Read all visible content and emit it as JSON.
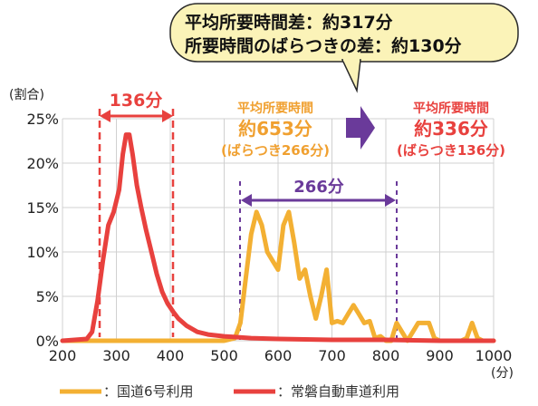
{
  "callout": {
    "line1": "平均所要時間差：約317分",
    "line2": "所要時間のばらつきの差：約130分"
  },
  "annotations": {
    "red_span_label": "136分",
    "purple_span_label": "266分",
    "orange_block": [
      "平均所要時間",
      "約653分",
      "(ばらつき266分)"
    ],
    "red_block": [
      "平均所要時間",
      "約336分",
      "(ばらつき136分)"
    ]
  },
  "colors": {
    "orange": "#f3b033",
    "red": "#e8413e",
    "purple": "#6a3a9a",
    "callout_fill": "#fbf3b8",
    "callout_stroke": "#2a2a2a"
  },
  "chart_data": {
    "type": "line",
    "xlabel": "(分)",
    "ylabel": "(割合)",
    "xlim": [
      200,
      1000
    ],
    "ylim": [
      0,
      25
    ],
    "x_ticks": [
      200,
      300,
      400,
      500,
      600,
      700,
      800,
      900,
      1000
    ],
    "y_ticks": [
      0,
      5,
      10,
      15,
      20,
      25
    ],
    "y_tick_labels": [
      "0%",
      "5%",
      "10%",
      "15%",
      "20%",
      "25%"
    ],
    "grid": true,
    "legend_position": "bottom",
    "series": [
      {
        "name": "：国道6号利用",
        "color": "#f3b033",
        "points": [
          [
            200,
            0
          ],
          [
            460,
            0
          ],
          [
            500,
            0
          ],
          [
            520,
            0.3
          ],
          [
            530,
            2
          ],
          [
            540,
            7
          ],
          [
            550,
            12
          ],
          [
            560,
            14.5
          ],
          [
            570,
            13
          ],
          [
            580,
            10
          ],
          [
            590,
            9
          ],
          [
            600,
            8
          ],
          [
            610,
            13
          ],
          [
            620,
            14.5
          ],
          [
            630,
            11
          ],
          [
            640,
            7
          ],
          [
            650,
            8
          ],
          [
            660,
            5
          ],
          [
            670,
            2.5
          ],
          [
            680,
            5
          ],
          [
            690,
            8
          ],
          [
            700,
            2
          ],
          [
            710,
            2.2
          ],
          [
            720,
            2
          ],
          [
            730,
            3
          ],
          [
            740,
            4
          ],
          [
            750,
            3
          ],
          [
            760,
            2
          ],
          [
            770,
            2.2
          ],
          [
            780,
            0.3
          ],
          [
            790,
            0.5
          ],
          [
            800,
            0
          ],
          [
            810,
            0
          ],
          [
            820,
            2
          ],
          [
            830,
            1
          ],
          [
            840,
            0
          ],
          [
            850,
            1
          ],
          [
            860,
            2
          ],
          [
            870,
            2
          ],
          [
            880,
            2
          ],
          [
            890,
            0.3
          ],
          [
            900,
            0
          ],
          [
            910,
            0
          ],
          [
            920,
            0
          ],
          [
            930,
            0
          ],
          [
            940,
            0
          ],
          [
            950,
            0.3
          ],
          [
            960,
            2
          ],
          [
            970,
            0.3
          ],
          [
            980,
            0
          ],
          [
            990,
            0
          ],
          [
            1000,
            0
          ]
        ]
      },
      {
        "name": "：常磐自動車道利用",
        "color": "#e8413e",
        "points": [
          [
            200,
            0
          ],
          [
            245,
            0.2
          ],
          [
            255,
            1
          ],
          [
            265,
            4.5
          ],
          [
            275,
            9
          ],
          [
            285,
            13
          ],
          [
            295,
            14.5
          ],
          [
            305,
            17
          ],
          [
            312,
            21
          ],
          [
            318,
            23.2
          ],
          [
            324,
            23.2
          ],
          [
            330,
            21
          ],
          [
            338,
            17.5
          ],
          [
            346,
            15
          ],
          [
            355,
            12.5
          ],
          [
            365,
            10
          ],
          [
            375,
            7.5
          ],
          [
            385,
            5.5
          ],
          [
            395,
            4.2
          ],
          [
            405,
            3.3
          ],
          [
            415,
            2.5
          ],
          [
            430,
            1.7
          ],
          [
            450,
            1.0
          ],
          [
            470,
            0.7
          ],
          [
            500,
            0.5
          ],
          [
            550,
            0.3
          ],
          [
            600,
            0.2
          ],
          [
            700,
            0.1
          ],
          [
            800,
            0.1
          ],
          [
            900,
            0
          ],
          [
            1000,
            0
          ]
        ]
      }
    ]
  }
}
